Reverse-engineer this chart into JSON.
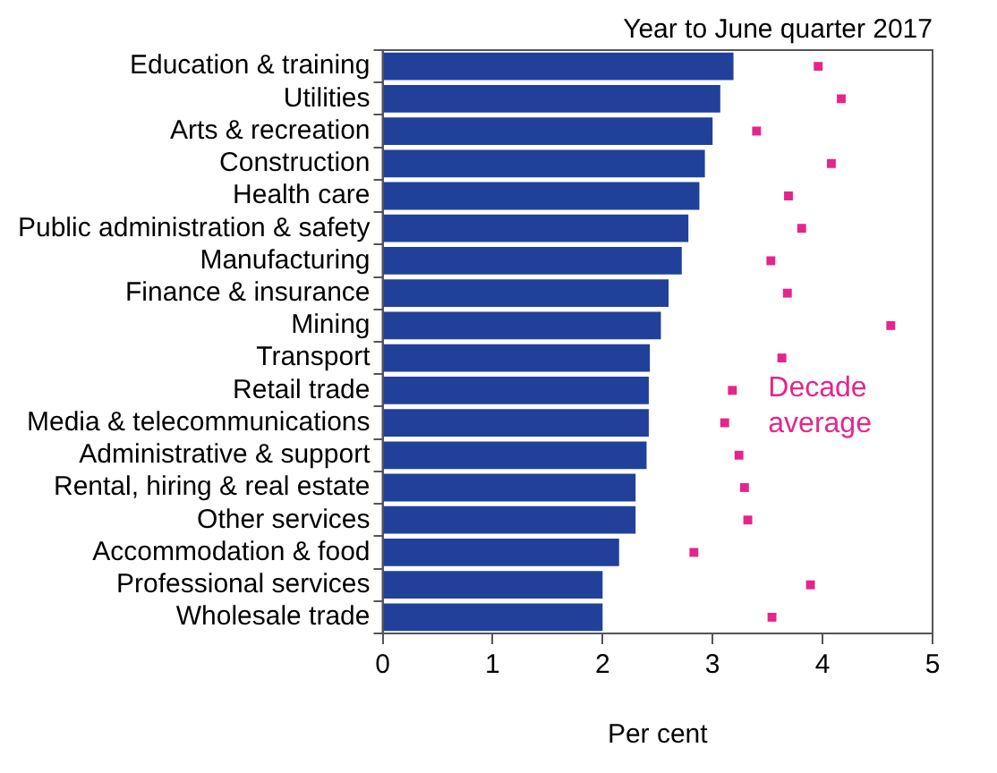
{
  "chart_data": {
    "type": "bar",
    "orientation": "horizontal",
    "title": "Year to June quarter 2017",
    "xlabel": "Per cent",
    "categories": [
      "Education & training",
      "Utilities",
      "Arts & recreation",
      "Construction",
      "Health care",
      "Public administration & safety",
      "Manufacturing",
      "Finance & insurance",
      "Mining",
      "Transport",
      "Retail trade",
      "Media & telecommunications",
      "Administrative & support",
      "Rental, hiring & real estate",
      "Other services",
      "Accommodation & food",
      "Professional services",
      "Wholesale trade"
    ],
    "series": [
      {
        "color": "#21409a",
        "values": [
          3.19,
          3.07,
          3.0,
          2.93,
          2.88,
          2.78,
          2.72,
          2.6,
          2.53,
          2.43,
          2.42,
          2.42,
          2.4,
          2.3,
          2.3,
          2.15,
          2.0,
          2.0
        ]
      },
      {
        "type": "scatter",
        "name": "Decade average",
        "color": "#e5258c",
        "marker": "square",
        "values": [
          3.96,
          4.17,
          3.4,
          4.08,
          3.69,
          3.81,
          3.53,
          3.68,
          4.62,
          3.63,
          3.18,
          3.11,
          3.24,
          3.29,
          3.32,
          2.83,
          3.89,
          3.54
        ]
      }
    ],
    "xlim": [
      0,
      5
    ],
    "xticks": [
      0,
      1,
      2,
      3,
      4,
      5
    ],
    "grid": false,
    "legend": false
  }
}
